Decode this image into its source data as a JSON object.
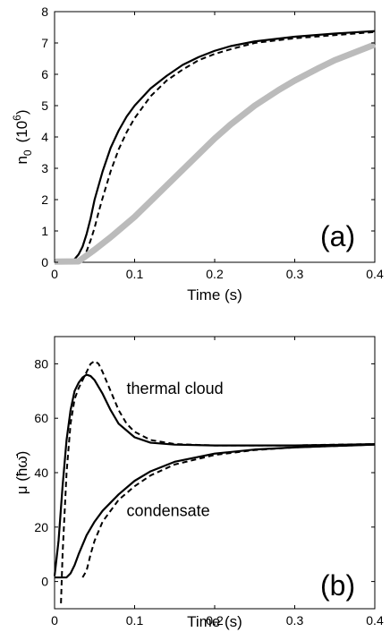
{
  "chart_data": [
    {
      "type": "line",
      "panel_label": "(a)",
      "xlabel": "Time  (s)",
      "ylabel_main": "n",
      "ylabel_sub": "0",
      "ylabel_unit_open": "(10",
      "ylabel_unit_sup": "6",
      "ylabel_unit_close": ")",
      "xlim": [
        0,
        0.4
      ],
      "ylim": [
        0,
        8
      ],
      "xticks": [
        0,
        0.1,
        0.2,
        0.3,
        0.4
      ],
      "xtick_labels": [
        "0",
        "0.1",
        "0.2",
        "0.3",
        "0.4"
      ],
      "yticks": [
        0,
        1,
        2,
        3,
        4,
        5,
        6,
        7,
        8
      ],
      "ytick_labels": [
        "0",
        "1",
        "2",
        "3",
        "4",
        "5",
        "6",
        "7",
        "8"
      ],
      "grid": false,
      "series": [
        {
          "style": "solid",
          "color": "#000000",
          "x": [
            0,
            0.02,
            0.025,
            0.03,
            0.035,
            0.04,
            0.045,
            0.05,
            0.06,
            0.07,
            0.08,
            0.09,
            0.1,
            0.12,
            0.14,
            0.16,
            0.18,
            0.2,
            0.22,
            0.25,
            0.3,
            0.35,
            0.4
          ],
          "y": [
            0.05,
            0.05,
            0.1,
            0.25,
            0.5,
            0.9,
            1.4,
            2.0,
            2.9,
            3.65,
            4.2,
            4.65,
            5.0,
            5.55,
            5.95,
            6.3,
            6.55,
            6.75,
            6.9,
            7.05,
            7.2,
            7.3,
            7.38
          ]
        },
        {
          "style": "dashed",
          "color": "#000000",
          "x": [
            0,
            0.03,
            0.035,
            0.04,
            0.045,
            0.05,
            0.055,
            0.06,
            0.07,
            0.08,
            0.09,
            0.1,
            0.12,
            0.14,
            0.16,
            0.18,
            0.2,
            0.22,
            0.25,
            0.3,
            0.35,
            0.4
          ],
          "y": [
            0.05,
            0.05,
            0.15,
            0.35,
            0.7,
            1.1,
            1.6,
            2.05,
            2.9,
            3.6,
            4.15,
            4.6,
            5.3,
            5.8,
            6.15,
            6.45,
            6.65,
            6.8,
            7.0,
            7.15,
            7.25,
            7.35
          ]
        },
        {
          "style": "solid-thick",
          "color": "#bbbbbb",
          "x": [
            0,
            0.03,
            0.05,
            0.07,
            0.1,
            0.12,
            0.15,
            0.18,
            0.2,
            0.22,
            0.25,
            0.28,
            0.3,
            0.33,
            0.35,
            0.38,
            0.4
          ],
          "y": [
            0.02,
            0.03,
            0.4,
            0.8,
            1.45,
            1.95,
            2.7,
            3.45,
            3.95,
            4.4,
            5.0,
            5.5,
            5.8,
            6.2,
            6.45,
            6.75,
            6.95
          ]
        }
      ]
    },
    {
      "type": "line",
      "panel_label": "(b)",
      "xlabel": "Time  (s)",
      "ylabel_main": "μ  (ħω̄)",
      "xlim": [
        0,
        0.4
      ],
      "ylim": [
        -10,
        90
      ],
      "xticks": [
        0,
        0.1,
        0.2,
        0.3,
        0.4
      ],
      "xtick_labels": [
        "0",
        "0.1",
        "0.2",
        "0.3",
        "0.4"
      ],
      "yticks": [
        0,
        20,
        40,
        60,
        80
      ],
      "ytick_labels": [
        "0",
        "20",
        "40",
        "60",
        "80"
      ],
      "grid": false,
      "annotations": [
        {
          "text": "thermal cloud",
          "x": 0.09,
          "y": 69
        },
        {
          "text": "condensate",
          "x": 0.09,
          "y": 24
        }
      ],
      "series": [
        {
          "name": "thermal cloud",
          "style": "solid",
          "color": "#000000",
          "x": [
            0,
            0.005,
            0.01,
            0.015,
            0.02,
            0.025,
            0.03,
            0.035,
            0.04,
            0.045,
            0.05,
            0.06,
            0.07,
            0.08,
            0.1,
            0.12,
            0.15,
            0.2,
            0.25,
            0.3,
            0.35,
            0.4
          ],
          "y": [
            2,
            15,
            35,
            52,
            63,
            70,
            73,
            75,
            76,
            75.5,
            74,
            69,
            63,
            58,
            53,
            51,
            50.3,
            50,
            50,
            50,
            50.2,
            50.5
          ]
        },
        {
          "name": "thermal cloud",
          "style": "dashed",
          "color": "#000000",
          "x": [
            0.008,
            0.01,
            0.015,
            0.02,
            0.025,
            0.03,
            0.035,
            0.04,
            0.045,
            0.05,
            0.055,
            0.06,
            0.07,
            0.08,
            0.09,
            0.1,
            0.12,
            0.15,
            0.2,
            0.25,
            0.3,
            0.35,
            0.4
          ],
          "y": [
            -8,
            10,
            40,
            58,
            67,
            71,
            74,
            77,
            80,
            81,
            80,
            77,
            70,
            63,
            58,
            55,
            52,
            50.5,
            50,
            50,
            50,
            50.3,
            50.5
          ]
        },
        {
          "name": "condensate",
          "style": "solid",
          "color": "#000000",
          "x": [
            0,
            0.015,
            0.02,
            0.025,
            0.03,
            0.04,
            0.05,
            0.06,
            0.08,
            0.1,
            0.12,
            0.15,
            0.2,
            0.25,
            0.3,
            0.35,
            0.4
          ],
          "y": [
            1.5,
            1.5,
            3,
            6,
            10,
            17,
            22,
            26,
            32,
            37,
            40.5,
            44,
            47,
            48.5,
            49.3,
            49.8,
            50.3
          ]
        },
        {
          "name": "condensate",
          "style": "dashed",
          "color": "#000000",
          "x": [
            0.035,
            0.04,
            0.045,
            0.05,
            0.06,
            0.08,
            0.1,
            0.12,
            0.15,
            0.2,
            0.25,
            0.3,
            0.35,
            0.4
          ],
          "y": [
            1.5,
            4,
            10,
            15,
            22,
            30,
            35,
            39,
            43,
            46.5,
            48.3,
            49.3,
            49.8,
            50.3
          ]
        }
      ]
    }
  ]
}
